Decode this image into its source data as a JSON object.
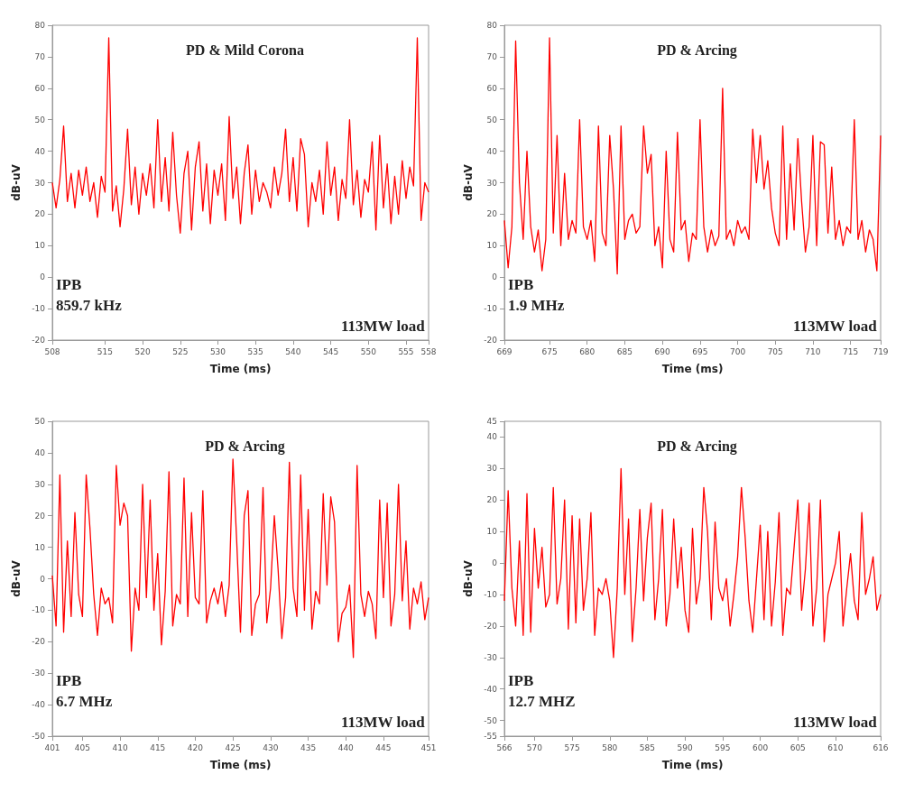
{
  "chart_data": [
    {
      "type": "line",
      "title": "PD & Mild Corona",
      "xlabel": "Time (ms)",
      "ylabel": "dB-uV",
      "annotations": [
        "IPB",
        "859.7 kHz",
        "113MW load"
      ],
      "xlim": [
        508,
        558
      ],
      "xticks": [
        508,
        515,
        520,
        525,
        530,
        535,
        540,
        545,
        550,
        555,
        558
      ],
      "ylim": [
        -20,
        80
      ],
      "yticks": [
        -20,
        -10,
        0,
        10,
        20,
        30,
        40,
        50,
        60,
        70,
        80
      ],
      "grid": false,
      "marker": "none",
      "line_style": "solid",
      "series": [
        {
          "color": "#ff0000",
          "x": [
            508,
            508.5,
            509,
            509.5,
            510,
            510.5,
            511,
            511.5,
            512,
            512.5,
            513,
            513.5,
            514,
            514.5,
            515,
            515.5,
            516,
            516.5,
            517,
            517.5,
            518,
            518.5,
            519,
            519.5,
            520,
            520.5,
            521,
            521.5,
            522,
            522.5,
            523,
            523.5,
            524,
            524.5,
            525,
            525.5,
            526,
            526.5,
            527,
            527.5,
            528,
            528.5,
            529,
            529.5,
            530,
            530.5,
            531,
            531.5,
            532,
            532.5,
            533,
            533.5,
            534,
            534.5,
            535,
            535.5,
            536,
            536.5,
            537,
            537.5,
            538,
            538.5,
            539,
            539.5,
            540,
            540.5,
            541,
            541.5,
            542,
            542.5,
            543,
            543.5,
            544,
            544.5,
            545,
            545.5,
            546,
            546.5,
            547,
            547.5,
            548,
            548.5,
            549,
            549.5,
            550,
            550.5,
            551,
            551.5,
            552,
            552.5,
            553,
            553.5,
            554,
            554.5,
            555,
            555.5,
            556,
            556.5,
            557,
            557.5,
            558
          ],
          "values": [
            30,
            22,
            31,
            48,
            24,
            33,
            22,
            34,
            26,
            35,
            24,
            30,
            19,
            32,
            27,
            76,
            21,
            29,
            16,
            28,
            47,
            23,
            35,
            20,
            33,
            26,
            36,
            22,
            50,
            24,
            38,
            21,
            46,
            26,
            14,
            33,
            40,
            15,
            35,
            43,
            21,
            36,
            17,
            34,
            26,
            36,
            18,
            51,
            25,
            35,
            17,
            33,
            42,
            20,
            34,
            24,
            30,
            27,
            22,
            35,
            26,
            33,
            47,
            24,
            38,
            21,
            44,
            39,
            16,
            30,
            24,
            34,
            20,
            43,
            26,
            35,
            18,
            31,
            25,
            50,
            23,
            34,
            19,
            31,
            27,
            43,
            15,
            45,
            22,
            36,
            17,
            32,
            20,
            37,
            25,
            35,
            29,
            76,
            18,
            30,
            27
          ]
        }
      ]
    },
    {
      "type": "line",
      "title": "PD & Arcing",
      "xlabel": "Time (ms)",
      "ylabel": "dB-uV",
      "annotations": [
        "IPB",
        "1.9 MHz",
        "113MW load"
      ],
      "xlim": [
        669,
        719
      ],
      "xticks": [
        669,
        675,
        680,
        685,
        690,
        695,
        700,
        705,
        710,
        715,
        719
      ],
      "ylim": [
        -20,
        80
      ],
      "yticks": [
        -20,
        -10,
        0,
        10,
        20,
        30,
        40,
        50,
        60,
        70,
        80
      ],
      "grid": false,
      "marker": "none",
      "line_style": "solid",
      "series": [
        {
          "color": "#ff0000",
          "x": [
            669,
            669.5,
            670,
            670.5,
            671,
            671.5,
            672,
            672.5,
            673,
            673.5,
            674,
            674.5,
            675,
            675.5,
            676,
            676.5,
            677,
            677.5,
            678,
            678.5,
            679,
            679.5,
            680,
            680.5,
            681,
            681.5,
            682,
            682.5,
            683,
            683.5,
            684,
            684.5,
            685,
            685.5,
            686,
            686.5,
            687,
            687.5,
            688,
            688.5,
            689,
            689.5,
            690,
            690.5,
            691,
            691.5,
            692,
            692.5,
            693,
            693.5,
            694,
            694.5,
            695,
            695.5,
            696,
            696.5,
            697,
            697.5,
            698,
            698.5,
            699,
            699.5,
            700,
            700.5,
            701,
            701.5,
            702,
            702.5,
            703,
            703.5,
            704,
            704.5,
            705,
            705.5,
            706,
            706.5,
            707,
            707.5,
            708,
            708.5,
            709,
            709.5,
            710,
            710.5,
            711,
            711.5,
            712,
            712.5,
            713,
            713.5,
            714,
            714.5,
            715,
            715.5,
            716,
            716.5,
            717,
            717.5,
            718,
            718.5,
            719
          ],
          "values": [
            18,
            3,
            16,
            75,
            30,
            12,
            40,
            16,
            8,
            15,
            2,
            12,
            76,
            14,
            45,
            10,
            33,
            12,
            18,
            14,
            50,
            16,
            12,
            18,
            5,
            48,
            14,
            10,
            45,
            28,
            1,
            48,
            12,
            18,
            20,
            14,
            16,
            48,
            33,
            39,
            10,
            16,
            3,
            40,
            12,
            8,
            46,
            15,
            18,
            5,
            14,
            12,
            50,
            16,
            8,
            15,
            10,
            13,
            60,
            12,
            15,
            10,
            18,
            14,
            16,
            12,
            47,
            30,
            45,
            28,
            37,
            22,
            14,
            10,
            48,
            12,
            36,
            15,
            44,
            24,
            8,
            16,
            45,
            10,
            43,
            42,
            14,
            35,
            12,
            18,
            10,
            16,
            14,
            50,
            12,
            18,
            8,
            15,
            12,
            2,
            45
          ]
        }
      ]
    },
    {
      "type": "line",
      "title": "PD & Arcing",
      "xlabel": "Time (ms)",
      "ylabel": "dB-uV",
      "annotations": [
        "IPB",
        "6.7 MHz",
        "113MW load"
      ],
      "xlim": [
        401,
        451
      ],
      "xticks": [
        401,
        405,
        410,
        415,
        420,
        425,
        430,
        435,
        440,
        445,
        451
      ],
      "ylim": [
        -50,
        50
      ],
      "yticks": [
        -50,
        -40,
        -30,
        -20,
        -10,
        0,
        10,
        20,
        30,
        40,
        50
      ],
      "grid": false,
      "marker": "none",
      "line_style": "solid",
      "series": [
        {
          "color": "#ff0000",
          "x": [
            401,
            401.5,
            402,
            402.5,
            403,
            403.5,
            404,
            404.5,
            405,
            405.5,
            406,
            406.5,
            407,
            407.5,
            408,
            408.5,
            409,
            409.5,
            410,
            410.5,
            411,
            411.5,
            412,
            412.5,
            413,
            413.5,
            414,
            414.5,
            415,
            415.5,
            416,
            416.5,
            417,
            417.5,
            418,
            418.5,
            419,
            419.5,
            420,
            420.5,
            421,
            421.5,
            422,
            422.5,
            423,
            423.5,
            424,
            424.5,
            425,
            425.5,
            426,
            426.5,
            427,
            427.5,
            428,
            428.5,
            429,
            429.5,
            430,
            430.5,
            431,
            431.5,
            432,
            432.5,
            433,
            433.5,
            434,
            434.5,
            435,
            435.5,
            436,
            436.5,
            437,
            437.5,
            438,
            438.5,
            439,
            439.5,
            440,
            440.5,
            441,
            441.5,
            442,
            442.5,
            443,
            443.5,
            444,
            444.5,
            445,
            445.5,
            446,
            446.5,
            447,
            447.5,
            448,
            448.5,
            449,
            449.5,
            450,
            450.5,
            451
          ],
          "values": [
            1,
            -15,
            33,
            -17,
            12,
            -12,
            21,
            -5,
            -12,
            33,
            16,
            -5,
            -18,
            -3,
            -8,
            -6,
            -14,
            36,
            17,
            24,
            20,
            -23,
            -3,
            -10,
            30,
            -6,
            25,
            -10,
            8,
            -21,
            -4,
            34,
            -15,
            -5,
            -8,
            32,
            -12,
            21,
            -6,
            -8,
            28,
            -14,
            -7,
            -3,
            -8,
            -1,
            -12,
            -2,
            38,
            12,
            -17,
            20,
            28,
            -18,
            -8,
            -5,
            29,
            -14,
            -3,
            20,
            3,
            -19,
            -6,
            37,
            -3,
            -12,
            33,
            -10,
            22,
            -16,
            -4,
            -8,
            27,
            -2,
            26,
            18,
            -20,
            -11,
            -9,
            -2,
            -25,
            36,
            -5,
            -12,
            -4,
            -8,
            -19,
            25,
            -6,
            24,
            -15,
            -5,
            30,
            -7,
            12,
            -16,
            -3,
            -8,
            -1,
            -13,
            -6
          ]
        }
      ]
    },
    {
      "type": "line",
      "title": "PD & Arcing",
      "xlabel": "Time (ms)",
      "ylabel": "dB-uV",
      "annotations": [
        "IPB",
        "12.7 MHZ",
        "113MW load"
      ],
      "xlim": [
        566,
        616
      ],
      "xticks": [
        566,
        570,
        575,
        580,
        585,
        590,
        595,
        600,
        605,
        610,
        616
      ],
      "ylim": [
        -55,
        45
      ],
      "yticks": [
        -55,
        -50,
        -40,
        -30,
        -20,
        -10,
        0,
        10,
        20,
        30,
        40,
        45
      ],
      "grid": false,
      "marker": "none",
      "line_style": "solid",
      "series": [
        {
          "color": "#ff0000",
          "x": [
            566,
            566.5,
            567,
            567.5,
            568,
            568.5,
            569,
            569.5,
            570,
            570.5,
            571,
            571.5,
            572,
            572.5,
            573,
            573.5,
            574,
            574.5,
            575,
            575.5,
            576,
            576.5,
            577,
            577.5,
            578,
            578.5,
            579,
            579.5,
            580,
            580.5,
            581,
            581.5,
            582,
            582.5,
            583,
            583.5,
            584,
            584.5,
            585,
            585.5,
            586,
            586.5,
            587,
            587.5,
            588,
            588.5,
            589,
            589.5,
            590,
            590.5,
            591,
            591.5,
            592,
            592.5,
            593,
            593.5,
            594,
            594.5,
            595,
            595.5,
            596,
            596.5,
            597,
            597.5,
            598,
            598.5,
            599,
            599.5,
            600,
            600.5,
            601,
            601.5,
            602,
            602.5,
            603,
            603.5,
            604,
            604.5,
            605,
            605.5,
            606,
            606.5,
            607,
            607.5,
            608,
            608.5,
            609,
            609.5,
            610,
            610.5,
            611,
            611.5,
            612,
            612.5,
            613,
            613.5,
            614,
            614.5,
            615,
            615.5,
            616
          ],
          "values": [
            -12,
            23,
            -8,
            -20,
            7,
            -23,
            22,
            -22,
            11,
            -8,
            5,
            -14,
            -10,
            24,
            -13,
            -5,
            20,
            -21,
            15,
            -19,
            14,
            -15,
            -5,
            16,
            -23,
            -8,
            -10,
            -5,
            -12,
            -30,
            -8,
            30,
            -10,
            14,
            -25,
            -8,
            17,
            -12,
            8,
            19,
            -18,
            -5,
            17,
            -20,
            -10,
            14,
            -8,
            5,
            -15,
            -22,
            11,
            -13,
            -5,
            24,
            10,
            -18,
            13,
            -8,
            -12,
            -5,
            -20,
            -10,
            2,
            24,
            8,
            -12,
            -22,
            -5,
            12,
            -18,
            10,
            -20,
            -6,
            16,
            -23,
            -8,
            -10,
            5,
            20,
            -15,
            -2,
            19,
            -20,
            -8,
            20,
            -25,
            -10,
            -5,
            0,
            10,
            -20,
            -8,
            3,
            -12,
            -18,
            16,
            -10,
            -5,
            2,
            -15,
            -10
          ]
        }
      ]
    }
  ]
}
